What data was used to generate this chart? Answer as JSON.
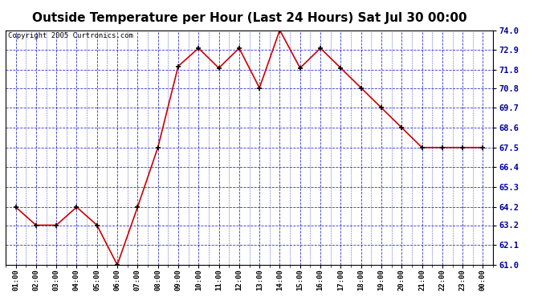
{
  "title": "Outside Temperature per Hour (Last 24 Hours) Sat Jul 30 00:00",
  "copyright": "Copyright 2005 Curtronics.com",
  "x_labels": [
    "01:00",
    "02:00",
    "03:00",
    "04:00",
    "05:00",
    "06:00",
    "07:00",
    "08:00",
    "09:00",
    "10:00",
    "11:00",
    "12:00",
    "13:00",
    "14:00",
    "15:00",
    "16:00",
    "17:00",
    "18:00",
    "19:00",
    "20:00",
    "21:00",
    "22:00",
    "23:00",
    "00:00"
  ],
  "y_values": [
    64.2,
    63.2,
    63.2,
    64.2,
    63.2,
    61.0,
    64.2,
    67.5,
    72.0,
    73.0,
    71.9,
    73.0,
    70.8,
    74.0,
    71.9,
    73.0,
    71.9,
    70.8,
    69.7,
    68.6,
    67.5,
    67.5,
    67.5,
    67.5
  ],
  "y_ticks": [
    61.0,
    62.1,
    63.2,
    64.2,
    65.3,
    66.4,
    67.5,
    68.6,
    69.7,
    70.8,
    71.8,
    72.9,
    74.0
  ],
  "ylim": [
    61.0,
    74.0
  ],
  "line_color": "#cc0000",
  "marker_color": "#000000",
  "bg_color": "#ffffff",
  "plot_bg_color": "#ffffff",
  "grid_color": "#0000bb",
  "title_fontsize": 11,
  "copyright_fontsize": 6.5,
  "tick_fontsize": 7.5,
  "xtick_fontsize": 6.5
}
